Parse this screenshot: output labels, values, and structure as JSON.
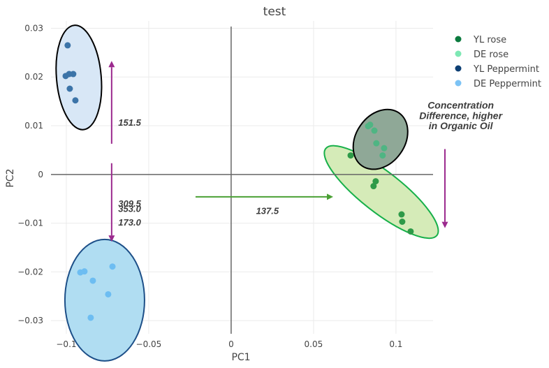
{
  "chart_data": {
    "type": "scatter",
    "title": "test",
    "xlabel": "PC1",
    "ylabel": "PC2",
    "xlim": [
      -0.1093,
      0.1225
    ],
    "ylim": [
      -0.0327,
      0.0315
    ],
    "grid": true,
    "legend_position": "top-right",
    "x_ticks": [
      {
        "value": -0.1,
        "label": "−0.1"
      },
      {
        "value": -0.05,
        "label": "−0.05"
      },
      {
        "value": 0,
        "label": "0"
      },
      {
        "value": 0.05,
        "label": "0.05"
      },
      {
        "value": 0.1,
        "label": "0.1"
      }
    ],
    "y_ticks": [
      {
        "value": 0.03,
        "label": "0.03"
      },
      {
        "value": 0.02,
        "label": "0.02"
      },
      {
        "value": 0.01,
        "label": "0.01"
      },
      {
        "value": 0,
        "label": "0"
      },
      {
        "value": -0.01,
        "label": "−0.01"
      },
      {
        "value": -0.02,
        "label": "−0.02"
      },
      {
        "value": -0.03,
        "label": "−0.03"
      }
    ],
    "series": [
      {
        "name": "YL rose",
        "color": "#0b7a3e",
        "point_color": "#2e9a48",
        "x": [
          0.0725,
          0.0877,
          0.0864,
          0.1034,
          0.1038,
          0.1089
        ],
        "y": [
          0.0039,
          -0.0014,
          -0.0024,
          -0.0082,
          -0.0097,
          -0.0117
        ]
      },
      {
        "name": "DE rose",
        "color": "#7ee8b4",
        "point_color": "#4fb583",
        "x": [
          0.0831,
          0.0843,
          0.0869,
          0.0881,
          0.0928,
          0.0919
        ],
        "y": [
          0.0099,
          0.0102,
          0.009,
          0.0064,
          0.0054,
          0.0039
        ]
      },
      {
        "name": "YL Peppermint",
        "color": "#0d3f74",
        "point_color": "#3c74a8",
        "x": [
          -0.0992,
          -0.1004,
          -0.0983,
          -0.0958,
          -0.0979,
          -0.0945
        ],
        "y": [
          0.0265,
          0.0202,
          0.0206,
          0.0206,
          0.0176,
          0.0152
        ]
      },
      {
        "name": "DE Peppermint",
        "color": "#7cc3f5",
        "point_color": "#6dbdf2",
        "x": [
          -0.0915,
          -0.089,
          -0.0839,
          -0.072,
          -0.0746,
          -0.0852
        ],
        "y": [
          -0.0201,
          -0.0199,
          -0.0218,
          -0.0189,
          -0.0246,
          -0.0294
        ]
      }
    ],
    "ellipses": [
      {
        "group": "YL Peppermint",
        "cx": -0.0924,
        "cy": 0.0199,
        "rx": 0.0136,
        "ry": 0.0108,
        "angle_deg": -5,
        "fill": "#d8e7f6",
        "stroke": "#000000"
      },
      {
        "group": "DE Peppermint",
        "cx": -0.0767,
        "cy": -0.0258,
        "rx": 0.0242,
        "ry": 0.0125,
        "angle_deg": 0,
        "fill": "#b0ddf2",
        "stroke": "#1d4f88"
      },
      {
        "group": "YL rose",
        "cx": 0.0911,
        "cy": -0.0036,
        "major": 0.0428,
        "minor": 0.0123,
        "angle_deg": 38,
        "fill": "#d5ebb8",
        "stroke": "#17b04a"
      },
      {
        "group": "DE rose",
        "cx": 0.0906,
        "cy": 0.0072,
        "major": 0.0196,
        "minor": 0.0148,
        "angle_deg": -55,
        "fill": "#8fa897",
        "stroke": "#000000"
      }
    ],
    "annotations": [
      {
        "text": "151.5",
        "x": -0.0616,
        "y": 0.01
      },
      {
        "text": "309.5",
        "x": -0.0616,
        "y": -0.0066
      },
      {
        "text": "353.0",
        "x": -0.0616,
        "y": -0.0077
      },
      {
        "text": "173.0",
        "x": -0.0616,
        "y": -0.0105
      },
      {
        "text": "137.5",
        "x": 0.022,
        "y": -0.0081
      },
      {
        "text": "Concentration",
        "x": 0.1393,
        "y": 0.0135
      },
      {
        "text": "Difference, higher",
        "x": 0.1393,
        "y": 0.0114
      },
      {
        "text": "in Organic Oil",
        "x": 0.1393,
        "y": 0.0093
      }
    ],
    "arrows": [
      {
        "color": "#9b2a8e",
        "x0": -0.0725,
        "y0": 0.0063,
        "x1": -0.0725,
        "y1": 0.0233
      },
      {
        "color": "#9b2a8e",
        "x0": -0.0725,
        "y0": 0.0023,
        "x1": -0.0725,
        "y1": -0.0138
      },
      {
        "color": "#4aa034",
        "x0": -0.0216,
        "y0": -0.0046,
        "x1": 0.0619,
        "y1": -0.0046
      },
      {
        "color": "#9b2a8e",
        "x0": 0.1297,
        "y0": 0.0052,
        "x1": 0.1297,
        "y1": -0.011
      }
    ]
  }
}
